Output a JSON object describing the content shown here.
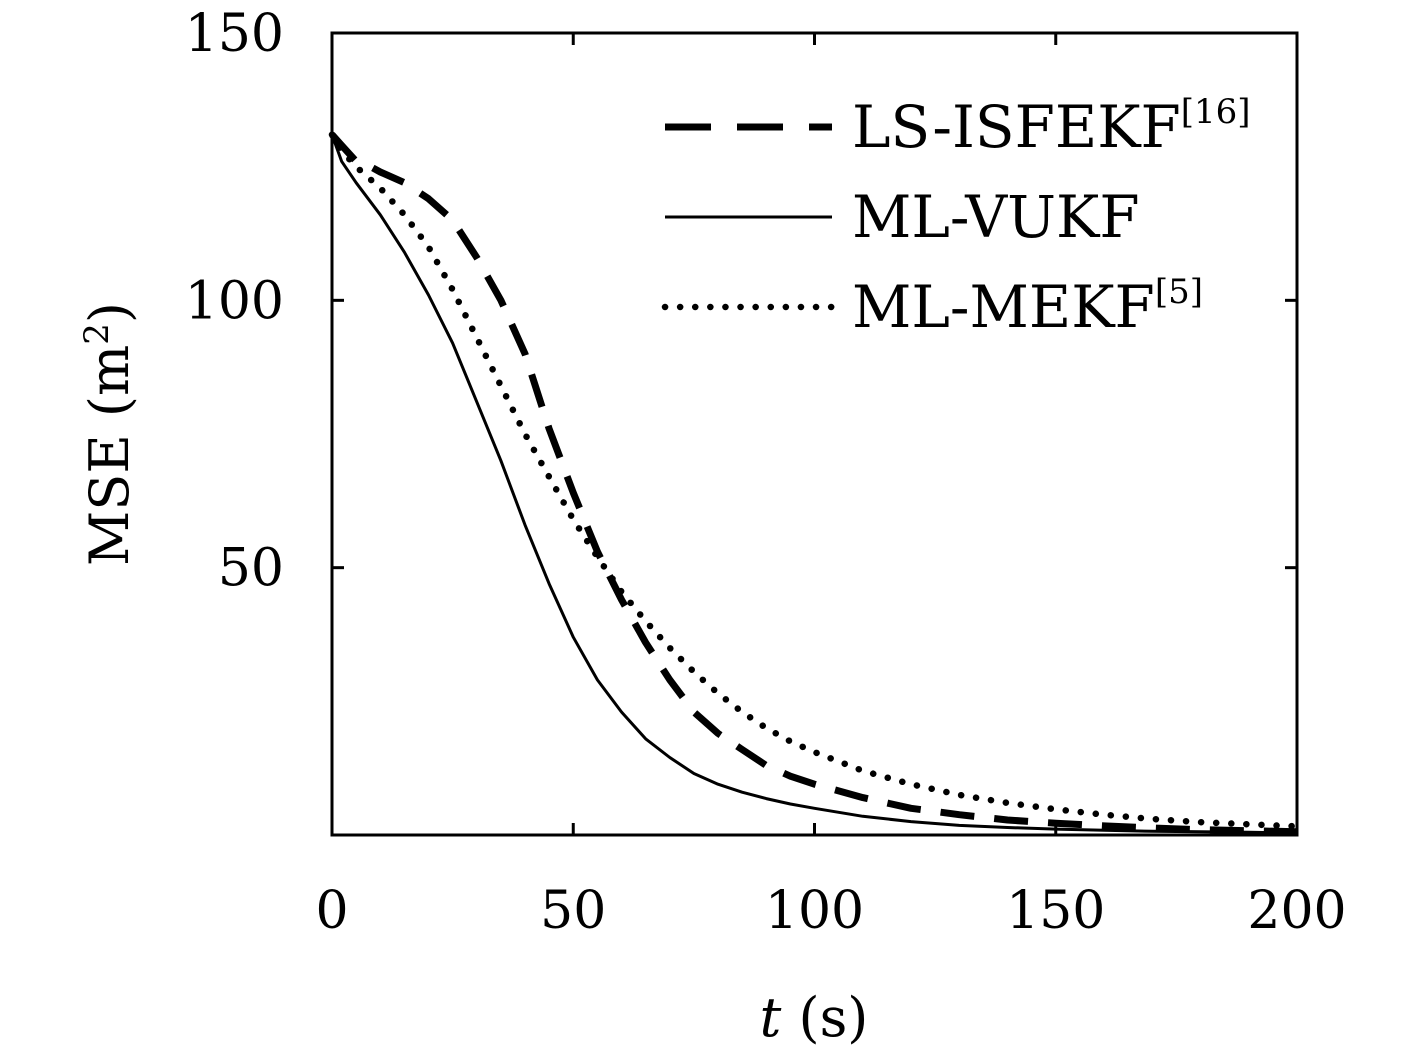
{
  "chart_data": {
    "type": "line",
    "title": "",
    "xlabel": {
      "var": "t",
      "unit": "(s)"
    },
    "ylabel": {
      "base": "MSE (m",
      "sup": "2",
      "close": ")"
    },
    "xlim": [
      0,
      200
    ],
    "ylim": [
      0,
      150
    ],
    "xticks": [
      0,
      50,
      100,
      150,
      200
    ],
    "yticks": [
      50,
      100,
      150
    ],
    "xtick_labels": [
      "0",
      "50",
      "100",
      "150",
      "200"
    ],
    "ytick_labels": [
      "50",
      "100",
      "150"
    ],
    "grid": false,
    "legend_position": "top-right",
    "series": [
      {
        "name": "LS-ISFEKF",
        "ref": "[16]",
        "style": "dashed",
        "x": [
          0,
          2,
          5,
          8,
          10,
          15,
          20,
          25,
          30,
          35,
          40,
          45,
          50,
          55,
          60,
          65,
          70,
          75,
          80,
          85,
          90,
          95,
          100,
          110,
          120,
          130,
          140,
          150,
          160,
          170,
          180,
          190,
          200
        ],
        "y": [
          131,
          129,
          126,
          125,
          124,
          122,
          119,
          115,
          108,
          100,
          90,
          76,
          64,
          53,
          44,
          36,
          29,
          23,
          19,
          16,
          13,
          11,
          9.5,
          7,
          5,
          3.8,
          2.8,
          2.2,
          1.7,
          1.3,
          1.0,
          0.8,
          0.6
        ]
      },
      {
        "name": "ML-VUKF",
        "ref": "",
        "style": "solid",
        "x": [
          0,
          2,
          5,
          10,
          15,
          20,
          25,
          30,
          35,
          40,
          45,
          50,
          55,
          60,
          65,
          70,
          75,
          80,
          85,
          90,
          95,
          100,
          110,
          120,
          130,
          140,
          150,
          160,
          170,
          180,
          190,
          200
        ],
        "y": [
          131,
          126,
          122,
          116,
          109,
          101,
          92,
          81,
          70,
          58,
          47,
          37,
          29,
          23,
          18,
          14.5,
          11.5,
          9.5,
          8,
          6.8,
          5.8,
          5,
          3.5,
          2.5,
          1.8,
          1.4,
          1.1,
          0.9,
          0.7,
          0.6,
          0.5,
          0.4
        ]
      },
      {
        "name": "ML-MEKF",
        "ref": "[5]",
        "style": "dotted",
        "x": [
          0,
          2,
          5,
          10,
          15,
          20,
          25,
          30,
          35,
          40,
          45,
          50,
          55,
          60,
          65,
          70,
          75,
          80,
          85,
          90,
          95,
          100,
          110,
          120,
          130,
          140,
          150,
          160,
          170,
          180,
          190,
          200
        ],
        "y": [
          131,
          128,
          125,
          121,
          116,
          110,
          102,
          93,
          84,
          75,
          67,
          59,
          52,
          45.5,
          40,
          35,
          30.5,
          26.5,
          23,
          20,
          17.5,
          15.5,
          12,
          9.5,
          7.5,
          6,
          4.8,
          3.8,
          3.0,
          2.4,
          2.0,
          1.6
        ]
      }
    ]
  }
}
